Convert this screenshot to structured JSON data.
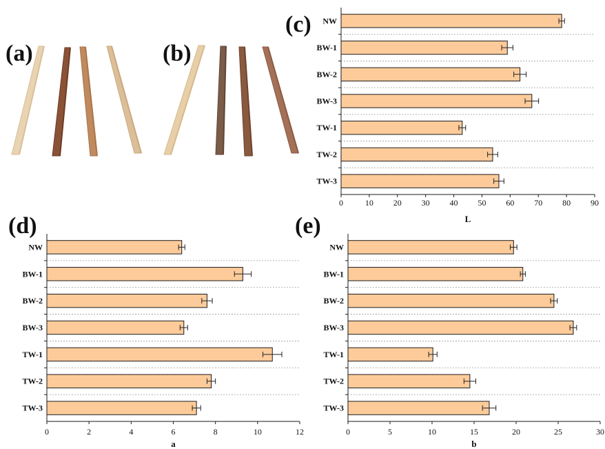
{
  "photos": [
    {
      "label": "(a)",
      "sticks": [
        {
          "color": "#e8d3b2",
          "color_dark": "#d9bf98"
        },
        {
          "color": "#8a5236",
          "color_dark": "#6e3d26"
        },
        {
          "color": "#c08a5e",
          "color_dark": "#a8754b"
        },
        {
          "color": "#dcbf98",
          "color_dark": "#c9a87e"
        }
      ]
    },
    {
      "label": "(b)",
      "sticks": [
        {
          "color": "#e7cfa8",
          "color_dark": "#d7b98c"
        },
        {
          "color": "#7a5c48",
          "color_dark": "#614535"
        },
        {
          "color": "#8a5a40",
          "color_dark": "#6f432e"
        },
        {
          "color": "#a47158",
          "color_dark": "#8a5a43"
        }
      ]
    }
  ],
  "bar_fill": "#fdcb9a",
  "chart_data": [
    {
      "panel_label": "(c)",
      "type": "bar",
      "orientation": "horizontal",
      "categories": [
        "NW",
        "BW-1",
        "BW-2",
        "BW-3",
        "TW-1",
        "TW-2",
        "TW-3"
      ],
      "values": [
        78.3,
        59,
        63.5,
        67.7,
        43,
        53.8,
        56
      ],
      "errors": [
        1.0,
        2.0,
        2.2,
        2.4,
        1.2,
        1.8,
        1.8
      ],
      "xlabel": "L",
      "xlim": [
        0,
        90
      ],
      "xticks": [
        0,
        10,
        20,
        30,
        40,
        50,
        60,
        70,
        80,
        90
      ]
    },
    {
      "panel_label": "(d)",
      "type": "bar",
      "orientation": "horizontal",
      "categories": [
        "NW",
        "BW-1",
        "BW-2",
        "BW-3",
        "TW-1",
        "TW-2",
        "TW-3"
      ],
      "values": [
        6.4,
        9.3,
        7.6,
        6.5,
        10.7,
        7.8,
        7.1
      ],
      "errors": [
        0.15,
        0.4,
        0.25,
        0.18,
        0.45,
        0.2,
        0.2
      ],
      "xlabel": "a",
      "xlim": [
        0,
        12
      ],
      "xticks": [
        0,
        2,
        4,
        6,
        8,
        10,
        12
      ]
    },
    {
      "panel_label": "(e)",
      "type": "bar",
      "orientation": "horizontal",
      "categories": [
        "NW",
        "BW-1",
        "BW-2",
        "BW-3",
        "TW-1",
        "TW-2",
        "TW-3"
      ],
      "values": [
        19.7,
        20.8,
        24.5,
        26.8,
        10.1,
        14.5,
        16.8
      ],
      "errors": [
        0.4,
        0.3,
        0.4,
        0.4,
        0.5,
        0.7,
        0.8
      ],
      "xlabel": "b",
      "xlim": [
        0,
        30
      ],
      "xticks": [
        0,
        5,
        10,
        15,
        20,
        25,
        30
      ]
    }
  ]
}
